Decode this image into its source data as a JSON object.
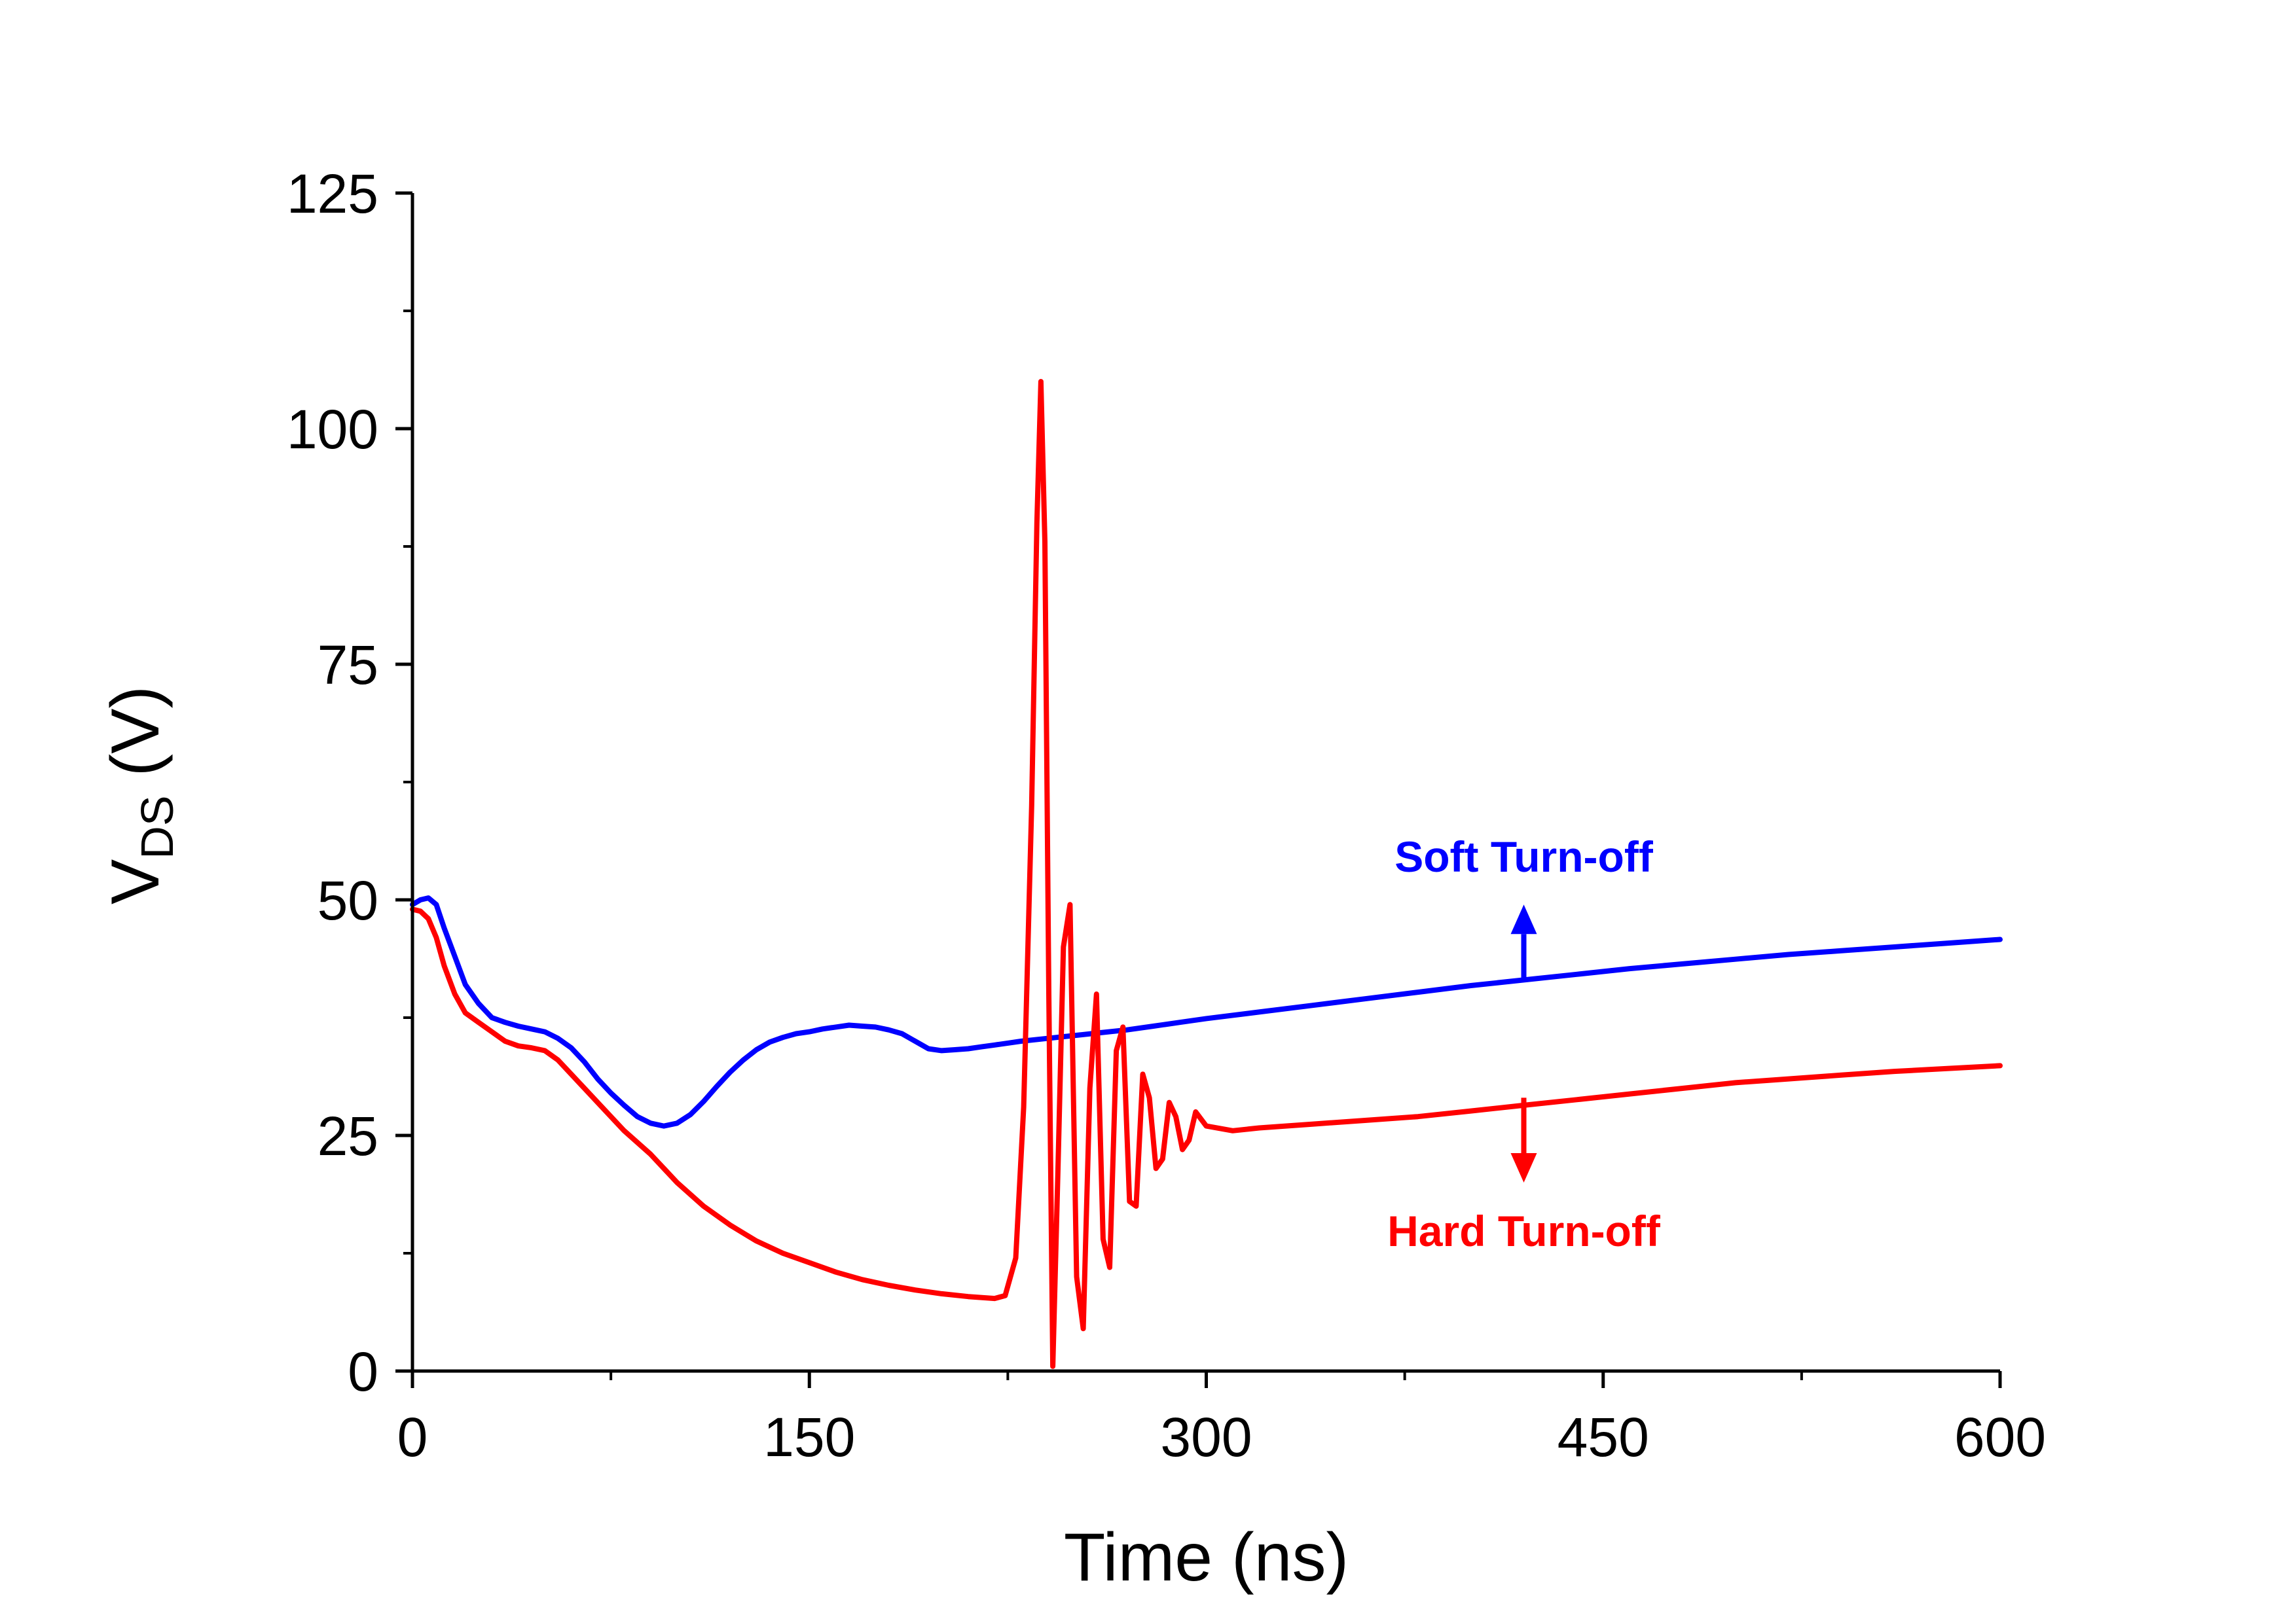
{
  "chart_data": {
    "type": "line",
    "title": "",
    "xlabel": "Time (ns)",
    "ylabel": {
      "main": "V",
      "sub": "DS",
      "unit": " (V)"
    },
    "xlim": [
      0,
      600
    ],
    "ylim": [
      0,
      125
    ],
    "xticks": [
      0,
      150,
      300,
      450,
      600
    ],
    "yticks": [
      0,
      25,
      50,
      75,
      100,
      125
    ],
    "grid": false,
    "legend": "none",
    "series": [
      {
        "color": "#0000ff",
        "x": [
          0,
          3,
          6,
          9,
          12,
          16,
          20,
          25,
          30,
          35,
          40,
          45,
          50,
          55,
          60,
          65,
          70,
          75,
          80,
          85,
          90,
          95,
          100,
          105,
          110,
          115,
          120,
          125,
          130,
          135,
          140,
          145,
          150,
          155,
          160,
          165,
          170,
          175,
          180,
          185,
          190,
          195,
          200,
          205,
          210,
          215,
          220,
          225,
          230,
          240,
          250,
          260,
          270,
          280,
          290,
          300,
          320,
          340,
          360,
          380,
          400,
          420,
          440,
          460,
          480,
          500,
          520,
          540,
          560,
          580,
          600
        ],
        "y": [
          49.5,
          50,
          50.2,
          49.5,
          47,
          44,
          41,
          39,
          37.5,
          37,
          36.6,
          36.3,
          36,
          35.3,
          34.3,
          32.8,
          31,
          29.5,
          28.2,
          27,
          26.3,
          26,
          26.3,
          27.2,
          28.6,
          30.2,
          31.7,
          33,
          34.1,
          34.9,
          35.4,
          35.8,
          36,
          36.3,
          36.5,
          36.7,
          36.6,
          36.5,
          36.2,
          35.8,
          35,
          34.2,
          34,
          34.1,
          34.2,
          34.4,
          34.6,
          34.8,
          35,
          35.3,
          35.6,
          35.9,
          36.2,
          36.6,
          37,
          37.4,
          38.1,
          38.8,
          39.5,
          40.2,
          40.9,
          41.5,
          42.1,
          42.7,
          43.2,
          43.7,
          44.2,
          44.6,
          45,
          45.4,
          45.8
        ]
      },
      {
        "color": "#ff0000",
        "x": [
          0,
          3,
          6,
          9,
          12,
          16,
          20,
          25,
          30,
          35,
          40,
          45,
          50,
          55,
          60,
          70,
          80,
          90,
          100,
          110,
          120,
          130,
          140,
          150,
          160,
          170,
          180,
          190,
          200,
          210,
          220,
          224,
          228,
          231,
          234,
          236,
          237.5,
          239,
          240.5,
          242,
          244,
          246,
          248.5,
          251,
          253.5,
          256,
          258.5,
          261,
          263.5,
          266,
          268.5,
          271,
          273.5,
          276,
          278.5,
          281,
          283.5,
          286,
          288.5,
          291,
          293.5,
          296,
          300,
          310,
          320,
          340,
          360,
          380,
          400,
          420,
          440,
          460,
          480,
          500,
          520,
          540,
          560,
          580,
          600
        ],
        "y": [
          49,
          48.8,
          48,
          46,
          43,
          40,
          38,
          37,
          36,
          35,
          34.5,
          34.3,
          34,
          33,
          31.5,
          28.5,
          25.5,
          23,
          20,
          17.5,
          15.5,
          13.8,
          12.5,
          11.5,
          10.5,
          9.7,
          9.1,
          8.6,
          8.2,
          7.9,
          7.7,
          8,
          12,
          28,
          60,
          90,
          105,
          88,
          40,
          0.5,
          22,
          45,
          49.5,
          10,
          4.5,
          30,
          40,
          14,
          11,
          34,
          36.5,
          18,
          17.5,
          31.5,
          29,
          21.5,
          22.5,
          28.5,
          27,
          23.5,
          24.5,
          27.5,
          26,
          25.5,
          25.8,
          26.2,
          26.6,
          27,
          27.6,
          28.2,
          28.8,
          29.4,
          30,
          30.6,
          31,
          31.4,
          31.8,
          32.1,
          32.4
        ]
      }
    ],
    "annotations": [
      {
        "text": "Soft Turn-off",
        "color": "#0000ff",
        "x": 420,
        "y": 54.5,
        "arrow": "up",
        "arrow_from": 41.5,
        "arrow_to": 49.5
      },
      {
        "text": "Hard Turn-off",
        "color": "#ff0000",
        "x": 420,
        "y": 14.8,
        "arrow": "down",
        "arrow_from": 29,
        "arrow_to": 20
      }
    ]
  }
}
